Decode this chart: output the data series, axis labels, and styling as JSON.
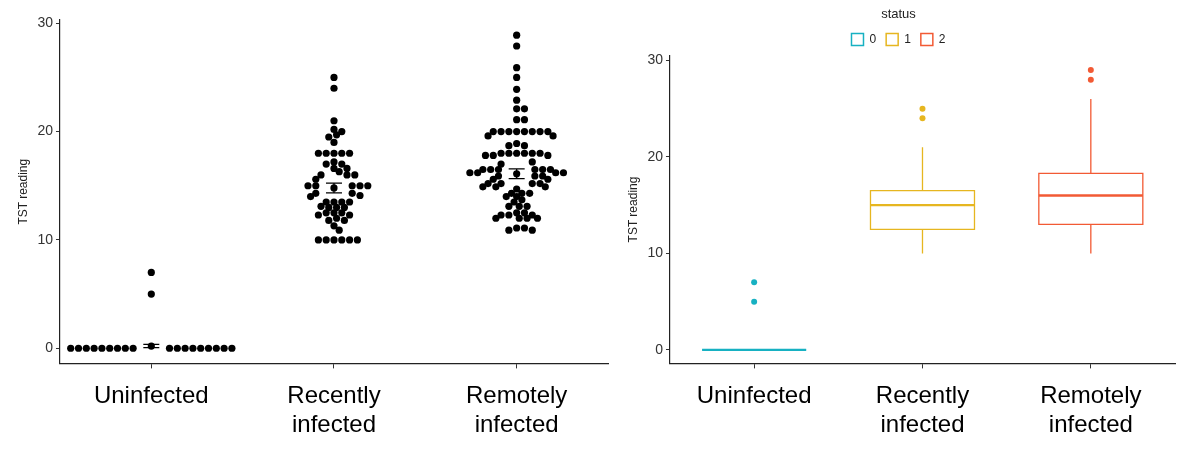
{
  "chart_data": [
    {
      "type": "scatter",
      "ylabel": "TST reading",
      "categories": [
        "Uninfected",
        "Recently infected",
        "Remotely infected"
      ],
      "ylim": [
        -1.4,
        30.3
      ],
      "yticks": [
        0,
        10,
        20,
        30
      ],
      "grid": false,
      "marker": "circle",
      "series": [
        {
          "color": "#000000",
          "x": [
            "Uninfected",
            "Uninfected",
            "Uninfected",
            "Uninfected",
            "Uninfected",
            "Uninfected",
            "Uninfected",
            "Uninfected",
            "Uninfected",
            "Uninfected",
            "Uninfected",
            "Uninfected",
            "Uninfected",
            "Uninfected",
            "Uninfected",
            "Uninfected",
            "Uninfected",
            "Uninfected",
            "Uninfected",
            "Uninfected"
          ],
          "values": [
            7,
            5,
            0,
            0,
            0,
            0,
            0,
            0,
            0,
            0,
            0,
            0,
            0,
            0,
            0,
            0,
            0,
            0,
            0,
            0
          ]
        },
        {
          "color": "#000000",
          "x": [
            "Recently infected",
            "Recently infected",
            "Recently infected",
            "Recently infected",
            "Recently infected",
            "Recently infected",
            "Recently infected",
            "Recently infected",
            "Recently infected",
            "Recently infected",
            "Recently infected",
            "Recently infected",
            "Recently infected",
            "Recently infected",
            "Recently infected",
            "Recently infected",
            "Recently infected",
            "Recently infected",
            "Recently infected",
            "Recently infected",
            "Recently infected",
            "Recently infected",
            "Recently infected",
            "Recently infected",
            "Recently infected",
            "Recently infected",
            "Recently infected",
            "Recently infected",
            "Recently infected",
            "Recently infected",
            "Recently infected",
            "Recently infected",
            "Recently infected",
            "Recently infected",
            "Recently infected",
            "Recently infected",
            "Recently infected",
            "Recently infected",
            "Recently infected",
            "Recently infected",
            "Recently infected",
            "Recently infected",
            "Recently infected",
            "Recently infected",
            "Recently infected",
            "Recently infected",
            "Recently infected",
            "Recently infected",
            "Recently infected",
            "Recently infected",
            "Recently infected",
            "Recently infected",
            "Recently infected",
            "Recently infected",
            "Recently infected",
            "Recently infected"
          ],
          "values": [
            25,
            24,
            21,
            20.2,
            20,
            19.7,
            19.5,
            19,
            18,
            18,
            18,
            18,
            18,
            17.2,
            17,
            17,
            16.6,
            16.6,
            16.3,
            16,
            16,
            16,
            15.6,
            15,
            15,
            15,
            15,
            15,
            14.3,
            14.3,
            14.1,
            14,
            13.5,
            13.5,
            13.5,
            13.5,
            13.1,
            13,
            13,
            13,
            12.5,
            12.5,
            12.5,
            12.3,
            12.3,
            12,
            11.8,
            11.8,
            11.3,
            10.9,
            10,
            10,
            10,
            10,
            10,
            10
          ]
        },
        {
          "color": "#000000",
          "x": [
            "Remotely infected",
            "Remotely infected",
            "Remotely infected",
            "Remotely infected",
            "Remotely infected",
            "Remotely infected",
            "Remotely infected",
            "Remotely infected",
            "Remotely infected",
            "Remotely infected",
            "Remotely infected",
            "Remotely infected",
            "Remotely infected",
            "Remotely infected",
            "Remotely infected",
            "Remotely infected",
            "Remotely infected",
            "Remotely infected",
            "Remotely infected",
            "Remotely infected",
            "Remotely infected",
            "Remotely infected",
            "Remotely infected",
            "Remotely infected",
            "Remotely infected",
            "Remotely infected",
            "Remotely infected",
            "Remotely infected",
            "Remotely infected",
            "Remotely infected",
            "Remotely infected",
            "Remotely infected",
            "Remotely infected",
            "Remotely infected",
            "Remotely infected",
            "Remotely infected",
            "Remotely infected",
            "Remotely infected",
            "Remotely infected",
            "Remotely infected",
            "Remotely infected",
            "Remotely infected",
            "Remotely infected",
            "Remotely infected",
            "Remotely infected",
            "Remotely infected",
            "Remotely infected",
            "Remotely infected",
            "Remotely infected",
            "Remotely infected",
            "Remotely infected",
            "Remotely infected",
            "Remotely infected",
            "Remotely infected",
            "Remotely infected",
            "Remotely infected",
            "Remotely infected",
            "Remotely infected",
            "Remotely infected",
            "Remotely infected",
            "Remotely infected",
            "Remotely infected",
            "Remotely infected",
            "Remotely infected",
            "Remotely infected",
            "Remotely infected",
            "Remotely infected",
            "Remotely infected",
            "Remotely infected",
            "Remotely infected",
            "Remotely infected",
            "Remotely infected",
            "Remotely infected",
            "Remotely infected",
            "Remotely infected",
            "Remotely infected",
            "Remotely infected",
            "Remotely infected",
            "Remotely infected",
            "Remotely infected"
          ],
          "values": [
            28.9,
            27.9,
            25.9,
            25,
            23.9,
            22.9,
            22.1,
            22.1,
            21.1,
            21.1,
            20,
            20,
            20,
            20,
            20,
            20,
            20,
            20,
            19.6,
            19.6,
            18.9,
            18.7,
            18.7,
            18,
            18,
            18,
            18,
            18,
            18,
            17.8,
            17.8,
            17.8,
            17.2,
            17,
            16.5,
            16.5,
            16.5,
            16.5,
            16.5,
            16.5,
            16.2,
            16.2,
            16.2,
            16.2,
            15.9,
            15.9,
            15.9,
            15.6,
            15.6,
            15.2,
            15.2,
            15.2,
            15.2,
            14.9,
            14.9,
            14.9,
            14.7,
            14.3,
            14.3,
            14.3,
            14,
            14,
            13.7,
            13.5,
            13.1,
            13.1,
            13.1,
            12.5,
            12.5,
            12.3,
            12.3,
            12.3,
            12,
            12,
            12,
            12,
            11.1,
            11.1,
            10.9,
            10.9
          ]
        },
        {
          "color": "#000000",
          "x": [
            "Uninfected",
            "Recently infected",
            "Remotely infected"
          ],
          "values": [
            0.2,
            14.8,
            16.1
          ],
          "errors": [
            0.15,
            0.45,
            0.45
          ]
        }
      ]
    },
    {
      "type": "box",
      "ylabel": "TST reading",
      "categories": [
        "Uninfected",
        "Recently infected",
        "Remotely infected"
      ],
      "ylim": [
        -1.4,
        30.5
      ],
      "yticks": [
        0,
        10,
        20,
        30
      ],
      "grid": false,
      "legend": "top",
      "legend_title": "status",
      "series": [
        {
          "name": "0",
          "color": "#17b1c2",
          "boxes": [
            {
              "low": 0,
              "q1": 0,
              "median": 0,
              "q3": 0,
              "high": 0,
              "outliers": [
                5,
                7
              ]
            },
            null,
            null
          ]
        },
        {
          "name": "1",
          "color": "#e6b620",
          "boxes": [
            null,
            {
              "low": 10,
              "q1": 12.5,
              "median": 15,
              "q3": 16.5,
              "high": 21,
              "outliers": [
                24,
                25
              ]
            },
            null
          ]
        },
        {
          "name": "2",
          "color": "#f25a34",
          "boxes": [
            null,
            null,
            {
              "low": 10,
              "q1": 13,
              "median": 16,
              "q3": 18.3,
              "high": 26,
              "outliers": [
                28,
                29
              ]
            }
          ]
        }
      ]
    }
  ]
}
